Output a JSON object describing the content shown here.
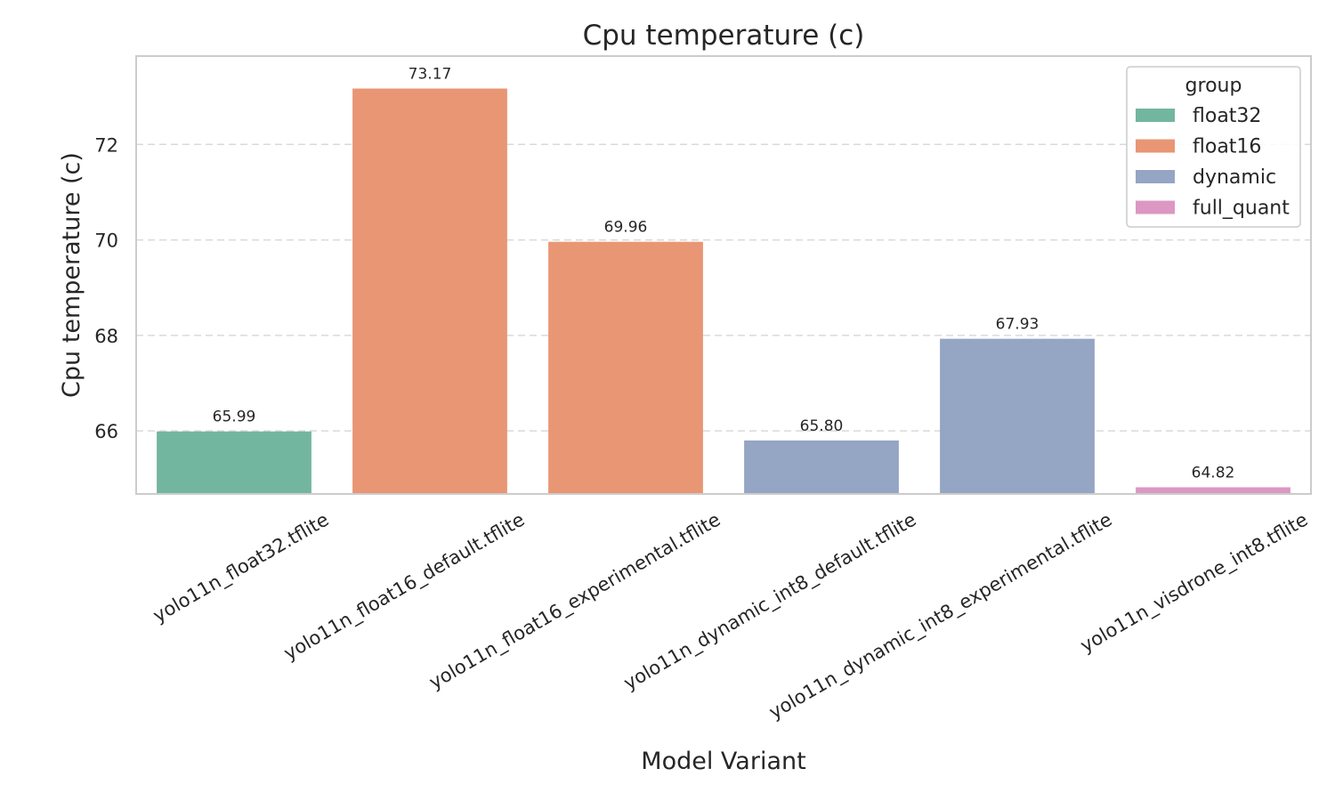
{
  "chart_data": {
    "type": "bar",
    "title": "Cpu temperature (c)",
    "xlabel": "Model Variant",
    "ylabel": "Cpu temperature (c)",
    "ylim": [
      64.68,
      73.85
    ],
    "yticks": [
      66,
      68,
      70,
      72
    ],
    "grid": true,
    "legend": {
      "title": "group",
      "placement": "top-right",
      "entries": [
        {
          "name": "float32",
          "color": "#73b6a0"
        },
        {
          "name": "float16",
          "color": "#e99674"
        },
        {
          "name": "dynamic",
          "color": "#95a5c4"
        },
        {
          "name": "full_quant",
          "color": "#dc97c3"
        }
      ]
    },
    "categories": [
      "yolo11n_float32.tflite",
      "yolo11n_float16_default.tflite",
      "yolo11n_float16_experimental.tflite",
      "yolo11n_dynamic_int8_default.tflite",
      "yolo11n_dynamic_int8_experimental.tflite",
      "yolo11n_visdrone_int8.tflite"
    ],
    "values": [
      65.99,
      73.17,
      69.96,
      65.8,
      67.93,
      64.82
    ],
    "labels": [
      "65.99",
      "73.17",
      "69.96",
      "65.80",
      "67.93",
      "64.82"
    ],
    "groups": [
      "float32",
      "float16",
      "float16",
      "dynamic",
      "dynamic",
      "full_quant"
    ]
  }
}
